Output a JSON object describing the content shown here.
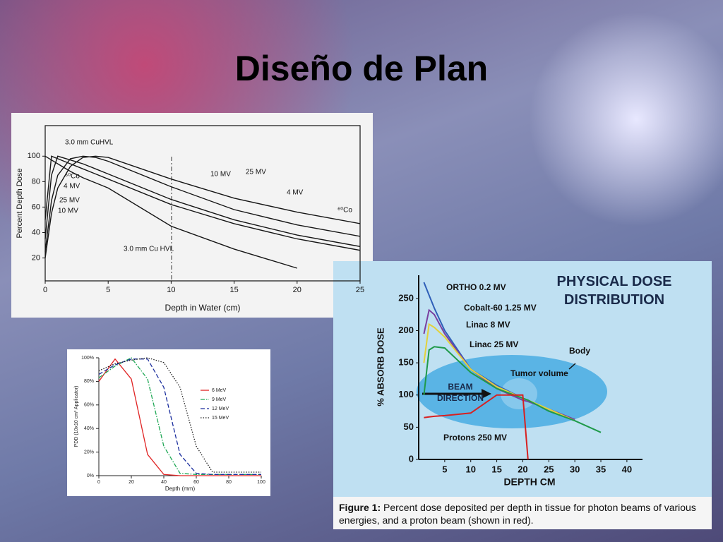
{
  "title": "Diseño de Plan",
  "chart_data": [
    {
      "type": "line",
      "y_label": "Percent Depth Dose",
      "x_label": "Depth in Water (cm)",
      "x": [
        0,
        0.5,
        1,
        2,
        3,
        4,
        5,
        10,
        15,
        20,
        25
      ],
      "xlim": [
        0,
        25
      ],
      "xticks": [
        0,
        5,
        10,
        15,
        20,
        25
      ],
      "ylim": [
        2,
        124
      ],
      "yticks": [
        20,
        40,
        60,
        80,
        100
      ],
      "annotations": [
        "3.0 mm CuHVL",
        "⁶⁰Co",
        "4 MV",
        "25 MV",
        "10 MV"
      ],
      "series": [
        {
          "name": "3.0 mm Cu HVL",
          "color": "#151515",
          "dash": "solid",
          "values": [
            100,
            97,
            94,
            88,
            83,
            79,
            75,
            45,
            27,
            12,
            null
          ]
        },
        {
          "name": "⁶⁰Co",
          "color": "#151515",
          "dash": "solid",
          "values": [
            50,
            100,
            98,
            94,
            90,
            86,
            82,
            62,
            47,
            35,
            26
          ]
        },
        {
          "name": "4 MV",
          "color": "#151515",
          "dash": "solid",
          "values": [
            35,
            85,
            100,
            97,
            94,
            90,
            86,
            66,
            50,
            38,
            29
          ]
        },
        {
          "name": "10 MV",
          "color": "#151515",
          "dash": "solid",
          "values": [
            25,
            65,
            85,
            98,
            100,
            99,
            96,
            76,
            58,
            46,
            37
          ]
        },
        {
          "name": "25 MV",
          "color": "#151515",
          "dash": "solid",
          "values": [
            20,
            55,
            75,
            92,
            99,
            100,
            99,
            82,
            67,
            56,
            47
          ]
        }
      ]
    },
    {
      "type": "line",
      "y_label": "PDD (10x10 cm² Applicator)",
      "x_label": "Depth (mm)",
      "x": [
        0,
        10,
        20,
        30,
        40,
        50,
        60,
        70,
        80,
        90,
        100
      ],
      "xlim": [
        0,
        100
      ],
      "xticks": [
        0,
        20,
        40,
        60,
        80,
        100
      ],
      "ylim": [
        0,
        100
      ],
      "yticks": [
        {
          "value": 0,
          "label": "0%"
        },
        {
          "value": 20,
          "label": "20%"
        },
        {
          "value": 40,
          "label": "40%"
        },
        {
          "value": 60,
          "label": "60%"
        },
        {
          "value": 80,
          "label": "80%"
        },
        {
          "value": 100,
          "label": "100%"
        }
      ],
      "series": [
        {
          "name": "6 MeV",
          "color": "#e02424",
          "dash": "solid",
          "values": [
            80,
            99,
            82,
            18,
            1,
            0,
            0,
            0,
            0,
            0,
            0
          ]
        },
        {
          "name": "9 MeV",
          "color": "#1fa855",
          "dash": "dashdot",
          "values": [
            83,
            93,
            100,
            82,
            25,
            2,
            1,
            1,
            1,
            1,
            1
          ]
        },
        {
          "name": "12 MeV",
          "color": "#1c2f9e",
          "dash": "dash",
          "values": [
            86,
            94,
            99,
            99,
            75,
            18,
            2,
            1,
            1,
            1,
            1
          ]
        },
        {
          "name": "15 MeV",
          "color": "#222222",
          "dash": "dot",
          "values": [
            89,
            95,
            98,
            100,
            96,
            75,
            25,
            3,
            3,
            3,
            3
          ]
        }
      ]
    },
    {
      "type": "line",
      "title": "PHYSICAL DOSE DISTRIBUTION",
      "y_label": "% ABSORB DOSE",
      "x_label": "DEPTH CM",
      "x": [
        1,
        2,
        3,
        5,
        10,
        15,
        20,
        21,
        25,
        30,
        35
      ],
      "xlim": [
        0,
        43
      ],
      "xticks": [
        5,
        10,
        15,
        20,
        25,
        30,
        35,
        40
      ],
      "ylim": [
        0,
        286
      ],
      "yticks": [
        0,
        50,
        100,
        150,
        200,
        250
      ],
      "annotations": [
        "Body",
        "Tumor volume",
        "BEAM DIRECTION"
      ],
      "caption": {
        "label": "Figure 1:",
        "text": "Percent dose deposited per depth in tissue for photon beams of various energies, and a proton beam (shown in red)."
      },
      "series": [
        {
          "name": "ORTHO 0.2 MV",
          "color": "#2f5fb8",
          "dash": "solid",
          "values": [
            275,
            255,
            235,
            200,
            140,
            115,
            95,
            92,
            75,
            62,
            null
          ]
        },
        {
          "name": "Cobalt-60 1.25 MV",
          "color": "#7a3fa0",
          "dash": "solid",
          "values": [
            195,
            232,
            225,
            195,
            140,
            110,
            92,
            90,
            78,
            62,
            null
          ]
        },
        {
          "name": "Linac 8 MV",
          "color": "#e3d23a",
          "dash": "solid",
          "values": [
            150,
            210,
            205,
            190,
            140,
            113,
            95,
            92,
            78,
            60,
            null
          ]
        },
        {
          "name": "Linac 25 MV",
          "color": "#1f9a4a",
          "dash": "solid",
          "values": [
            100,
            170,
            175,
            173,
            135,
            110,
            95,
            92,
            75,
            60,
            42
          ]
        },
        {
          "name": "Protons 250 MV",
          "color": "#d82020",
          "dash": "solid",
          "values": [
            65,
            66,
            67,
            68,
            72,
            100,
            100,
            0,
            null,
            null,
            null
          ]
        }
      ]
    }
  ]
}
